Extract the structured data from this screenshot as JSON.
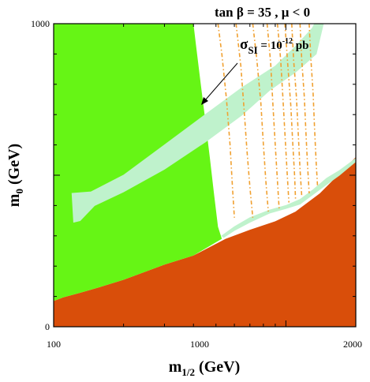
{
  "title": "tan β = 35 ,  μ < 0",
  "chart_data": {
    "type": "area",
    "title": "tan β = 35 ,  μ < 0",
    "xlabel_main": "m",
    "xlabel_sub": "1/2",
    "xlabel_unit": " (GeV)",
    "ylabel_main": "m",
    "ylabel_sub": "0",
    "ylabel_unit": " (GeV)",
    "xscale": "log",
    "xlim": [
      100,
      2000
    ],
    "ylim": [
      0,
      1000
    ],
    "x_tick_labels": [
      "100",
      "1000",
      "2000"
    ],
    "y_tick_labels": [
      "0",
      "1000"
    ],
    "annotation": {
      "main": "σ",
      "sub": "SI",
      "eq": " = 10",
      "exp": "-12",
      "unit": " pb"
    },
    "colors": {
      "excluded_region": "#d94e0a",
      "green_region": "#66f515",
      "light_band": "#bff2cc",
      "contours": "#f0a030",
      "background": "#ffffff"
    },
    "regions": [
      {
        "name": "excluded_region",
        "points": [
          [
            100,
            85
          ],
          [
            110,
            97
          ],
          [
            130,
            112
          ],
          [
            160,
            132
          ],
          [
            200,
            155
          ],
          [
            300,
            205
          ],
          [
            400,
            235
          ],
          [
            550,
            290
          ],
          [
            700,
            320
          ],
          [
            900,
            348
          ],
          [
            1100,
            380
          ],
          [
            1400,
            440
          ],
          [
            1700,
            505
          ],
          [
            2000,
            560
          ],
          [
            2000,
            0
          ],
          [
            100,
            0
          ]
        ]
      },
      {
        "name": "green_region",
        "points": [
          [
            100,
            1000
          ],
          [
            400,
            1000
          ],
          [
            410,
            930
          ],
          [
            430,
            800
          ],
          [
            450,
            680
          ],
          [
            470,
            560
          ],
          [
            490,
            440
          ],
          [
            510,
            330
          ],
          [
            530,
            290
          ],
          [
            400,
            235
          ],
          [
            300,
            205
          ],
          [
            200,
            155
          ],
          [
            160,
            132
          ],
          [
            130,
            112
          ],
          [
            110,
            97
          ],
          [
            100,
            85
          ]
        ]
      }
    ],
    "bands": [
      {
        "name": "upper_band",
        "points": [
          [
            120,
            440
          ],
          [
            145,
            445
          ],
          [
            200,
            500
          ],
          [
            300,
            600
          ],
          [
            450,
            700
          ],
          [
            650,
            790
          ],
          [
            900,
            860
          ],
          [
            1100,
            925
          ],
          [
            1300,
            985
          ],
          [
            1380,
            1000
          ],
          [
            1450,
            1000
          ],
          [
            1350,
            900
          ],
          [
            1100,
            840
          ],
          [
            850,
            780
          ],
          [
            650,
            700
          ],
          [
            450,
            610
          ],
          [
            300,
            520
          ],
          [
            200,
            445
          ],
          [
            150,
            400
          ],
          [
            130,
            350
          ],
          [
            122,
            345
          ]
        ]
      },
      {
        "name": "lower_band",
        "points": [
          [
            530,
            300
          ],
          [
            600,
            330
          ],
          [
            700,
            360
          ],
          [
            850,
            385
          ],
          [
            1000,
            400
          ],
          [
            1150,
            420
          ],
          [
            1300,
            450
          ],
          [
            1500,
            490
          ],
          [
            1700,
            515
          ],
          [
            2000,
            555
          ],
          [
            2000,
            545
          ],
          [
            1700,
            500
          ],
          [
            1500,
            470
          ],
          [
            1300,
            435
          ],
          [
            1150,
            405
          ],
          [
            1000,
            390
          ],
          [
            850,
            375
          ],
          [
            700,
            345
          ],
          [
            600,
            318
          ],
          [
            540,
            295
          ]
        ]
      },
      {
        "name": "top_band_strip",
        "points": [
          [
            1160,
            900
          ],
          [
            1250,
            960
          ],
          [
            1330,
            1000
          ],
          [
            1380,
            1000
          ],
          [
            1280,
            950
          ],
          [
            1190,
            890
          ]
        ]
      }
    ],
    "contour_lines": [
      {
        "name": "contour-1",
        "points": [
          [
            510,
            1000
          ],
          [
            530,
            900
          ],
          [
            555,
            750
          ],
          [
            575,
            600
          ],
          [
            590,
            450
          ],
          [
            600,
            360
          ]
        ]
      },
      {
        "name": "contour-2",
        "points": [
          [
            610,
            1000
          ],
          [
            640,
            860
          ],
          [
            660,
            720
          ],
          [
            680,
            580
          ],
          [
            700,
            460
          ],
          [
            720,
            360
          ]
        ]
      },
      {
        "name": "contour-3",
        "points": [
          [
            720,
            1000
          ],
          [
            750,
            880
          ],
          [
            780,
            740
          ],
          [
            800,
            600
          ],
          [
            820,
            480
          ],
          [
            840,
            380
          ]
        ]
      },
      {
        "name": "contour-4",
        "points": [
          [
            830,
            1000
          ],
          [
            860,
            870
          ],
          [
            880,
            730
          ],
          [
            900,
            600
          ],
          [
            920,
            480
          ],
          [
            935,
            390
          ]
        ]
      },
      {
        "name": "contour-5",
        "points": [
          [
            920,
            1000
          ],
          [
            950,
            880
          ],
          [
            970,
            760
          ],
          [
            990,
            640
          ],
          [
            1010,
            520
          ],
          [
            1030,
            410
          ]
        ]
      },
      {
        "name": "contour-6",
        "points": [
          [
            990,
            1000
          ],
          [
            1020,
            860
          ],
          [
            1050,
            730
          ],
          [
            1070,
            610
          ],
          [
            1090,
            500
          ],
          [
            1100,
            420
          ]
        ]
      },
      {
        "name": "contour-7",
        "points": [
          [
            1060,
            1000
          ],
          [
            1080,
            880
          ],
          [
            1110,
            760
          ],
          [
            1130,
            640
          ],
          [
            1150,
            520
          ],
          [
            1170,
            430
          ]
        ]
      },
      {
        "name": "contour-8",
        "points": [
          [
            1150,
            1000
          ],
          [
            1170,
            880
          ],
          [
            1200,
            760
          ],
          [
            1220,
            640
          ],
          [
            1240,
            530
          ],
          [
            1260,
            440
          ]
        ]
      },
      {
        "name": "contour-9",
        "points": [
          [
            1260,
            1000
          ],
          [
            1280,
            890
          ],
          [
            1310,
            770
          ],
          [
            1330,
            650
          ],
          [
            1350,
            540
          ],
          [
            1370,
            460
          ]
        ]
      }
    ]
  }
}
